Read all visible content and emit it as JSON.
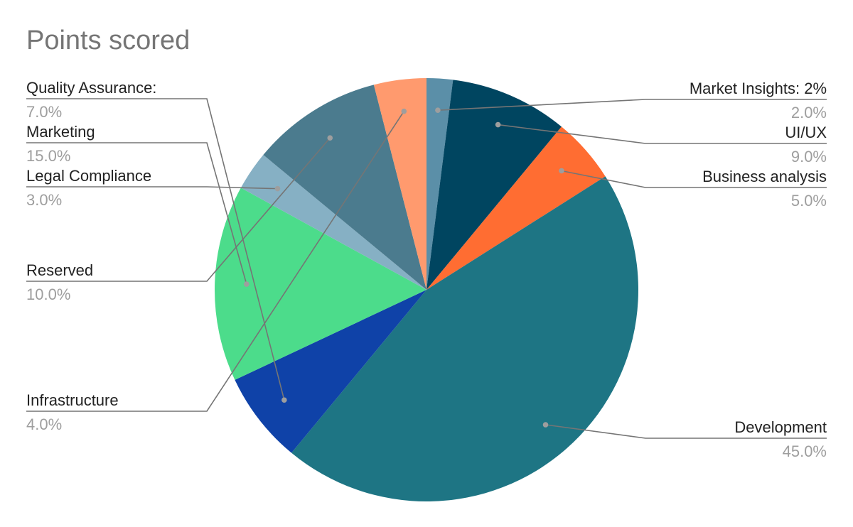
{
  "chart_data": {
    "type": "pie",
    "title": "Points scored",
    "start_angle_deg": 0,
    "direction": "clockwise",
    "slices": [
      {
        "label": "Market Insights: 2%",
        "value": 2.0,
        "pct_text": "2.0%",
        "color": "#5b8fa8"
      },
      {
        "label": "UI/UX",
        "value": 9.0,
        "pct_text": "9.0%",
        "color": "#004560"
      },
      {
        "label": "Business analysis",
        "value": 5.0,
        "pct_text": "5.0%",
        "color": "#ff6d32"
      },
      {
        "label": "Development",
        "value": 45.0,
        "pct_text": "45.0%",
        "color": "#1e7584"
      },
      {
        "label": "Quality Assurance:",
        "value": 7.0,
        "pct_text": "7.0%",
        "color": "#0f42a8"
      },
      {
        "label": "Marketing",
        "value": 15.0,
        "pct_text": "15.0%",
        "color": "#4cdc8b"
      },
      {
        "label": "Legal Compliance",
        "value": 3.0,
        "pct_text": "3.0%",
        "color": "#86b0c4"
      },
      {
        "label": "Reserved",
        "value": 10.0,
        "pct_text": "10.0%",
        "color": "#4b7b8e"
      },
      {
        "label": "Infrastructure",
        "value": 4.0,
        "pct_text": "4.0%",
        "color": "#ff9a6e"
      }
    ],
    "legend": "none",
    "leader_color": "#757575"
  }
}
